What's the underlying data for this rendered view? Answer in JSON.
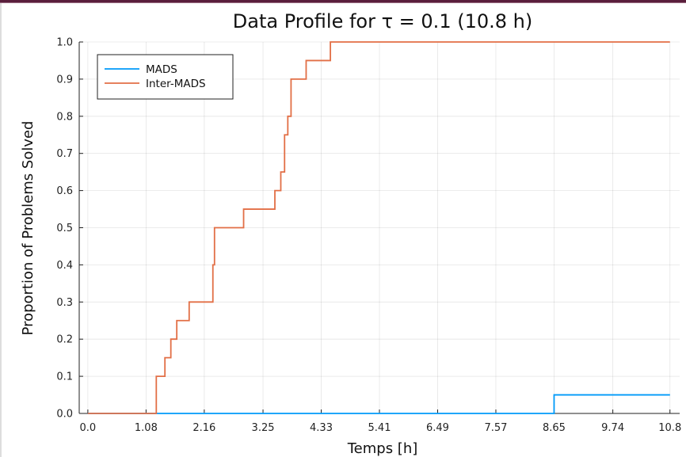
{
  "chart_data": {
    "type": "line",
    "step": true,
    "title": "Data Profile for τ = 0.1 (10.8 h)",
    "xlabel": "Temps [h]",
    "ylabel": "Proportion of Problems Solved",
    "xlim": [
      -0.16,
      10.98
    ],
    "ylim": [
      0.0,
      1.0
    ],
    "grid": true,
    "legend_position": "top-left",
    "x_ticks": [
      0.0,
      1.08,
      2.16,
      3.25,
      4.33,
      5.41,
      6.49,
      7.57,
      8.65,
      9.74,
      10.8
    ],
    "x_tick_labels": [
      "0.0",
      "1.08",
      "2.16",
      "3.25",
      "4.33",
      "5.41",
      "6.49",
      "7.57",
      "8.65",
      "9.74",
      "10.8"
    ],
    "y_ticks": [
      0.0,
      0.1,
      0.2,
      0.3,
      0.4,
      0.5,
      0.6,
      0.7,
      0.8,
      0.9,
      1.0
    ],
    "y_tick_labels": [
      "0.0",
      "0.1",
      "0.2",
      "0.3",
      "0.4",
      "0.5",
      "0.6",
      "0.7",
      "0.8",
      "0.9",
      "1.0"
    ],
    "series": [
      {
        "name": "MADS",
        "color": "#009af9",
        "x": [
          0.0,
          8.65,
          10.8
        ],
        "y": [
          0.0,
          0.05,
          0.05
        ]
      },
      {
        "name": "Inter-MADS",
        "color": "#e26f46",
        "x": [
          0.0,
          1.27,
          1.43,
          1.54,
          1.65,
          1.88,
          2.32,
          2.35,
          2.89,
          3.47,
          3.58,
          3.65,
          3.71,
          3.77,
          4.05,
          4.5,
          10.8
        ],
        "y": [
          0.0,
          0.1,
          0.15,
          0.2,
          0.25,
          0.3,
          0.4,
          0.5,
          0.55,
          0.6,
          0.65,
          0.75,
          0.8,
          0.9,
          0.95,
          1.0,
          1.0
        ]
      }
    ]
  }
}
